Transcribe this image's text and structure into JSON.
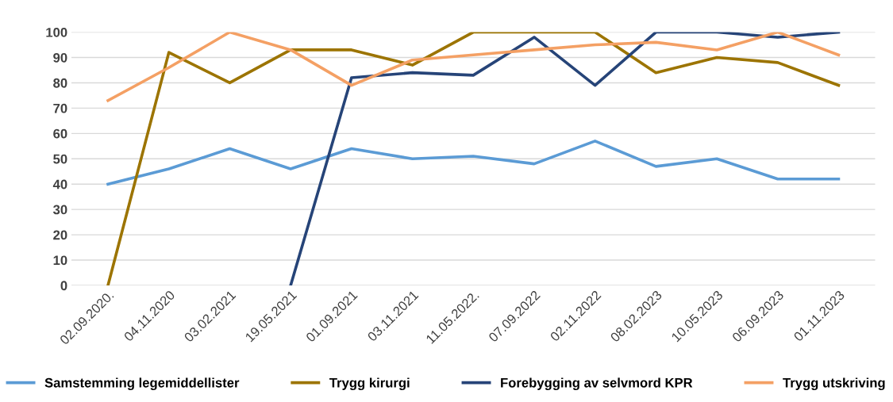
{
  "chart_data": {
    "type": "line",
    "categories": [
      "02.09.2020.",
      "04.11.2020",
      "03.02.2021",
      "19.05.2021",
      "01.09.2021",
      "03.11.2021",
      "11.05.2022.",
      "07.09.2022",
      "02.11.2022",
      "08.02.2023",
      "10.05.2023",
      "06.09.2023",
      "01.11.2023"
    ],
    "series": [
      {
        "name": "Samstemming legemiddellister",
        "color": "#5b9bd5",
        "values": [
          40,
          46,
          54,
          46,
          54,
          50,
          51,
          48,
          57,
          47,
          50,
          42,
          42
        ]
      },
      {
        "name": "Trygg kirurgi",
        "color": "#9c7400",
        "values": [
          0,
          92,
          80,
          93,
          93,
          87,
          100,
          100,
          100,
          84,
          90,
          88,
          79
        ]
      },
      {
        "name": "Forebygging av selvmord KPR",
        "color": "#264478",
        "values": [
          null,
          null,
          null,
          0,
          82,
          84,
          83,
          98,
          79,
          100,
          100,
          98,
          100
        ]
      },
      {
        "name": "Trygg utskriving",
        "color": "#f4a064",
        "values": [
          73,
          86,
          100,
          93,
          79,
          89,
          91,
          93,
          95,
          96,
          93,
          100,
          91
        ]
      }
    ],
    "ylim": [
      0,
      100
    ],
    "yticks": [
      0,
      10,
      20,
      30,
      40,
      50,
      60,
      70,
      80,
      90,
      100
    ],
    "grid": "y",
    "legend": "bottom",
    "marker": "none",
    "line_style": "solid"
  }
}
